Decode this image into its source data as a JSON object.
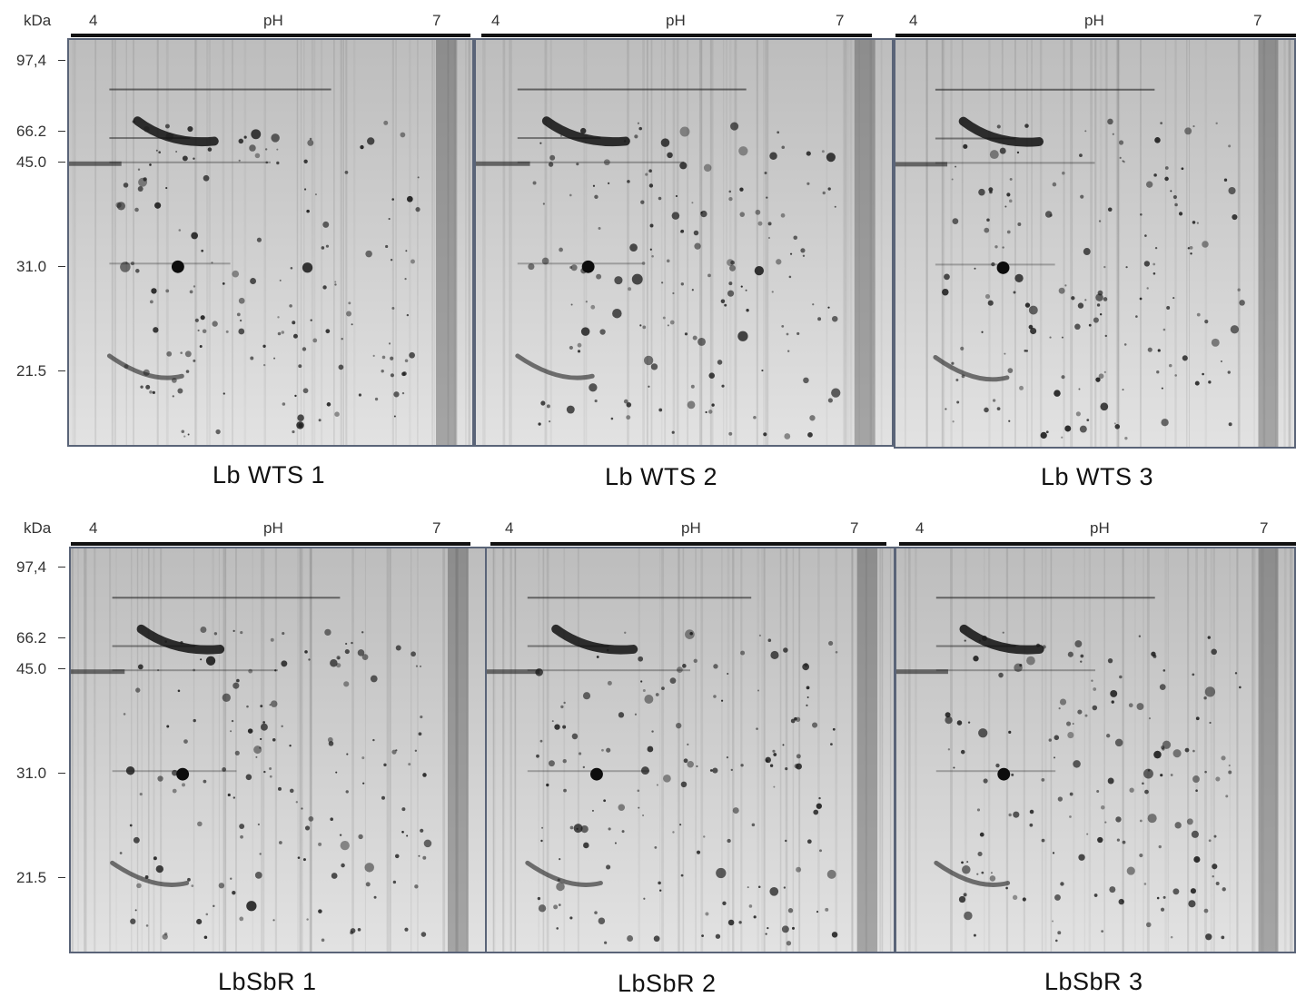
{
  "rows": [
    {
      "kda_label": "kDa",
      "mw_markers": [
        "97,4",
        "66.2",
        "45.0",
        "31.0",
        "21.5"
      ],
      "gels": [
        {
          "ph_start": "4",
          "ph_label": "pH",
          "ph_end": "7",
          "caption": "Lb WTS 1"
        },
        {
          "ph_start": "4",
          "ph_label": "pH",
          "ph_end": "7",
          "caption": "Lb WTS 2"
        },
        {
          "ph_start": "4",
          "ph_label": "pH",
          "ph_end": "7",
          "caption": "Lb WTS 3"
        }
      ]
    },
    {
      "kda_label": "kDa",
      "mw_markers": [
        "97,4",
        "66.2",
        "45.0",
        "31.0",
        "21.5"
      ],
      "gels": [
        {
          "ph_start": "4",
          "ph_label": "pH",
          "ph_end": "7",
          "caption": "LbSbR 1"
        },
        {
          "ph_start": "4",
          "ph_label": "pH",
          "ph_end": "7",
          "caption": "LbSbR 2"
        },
        {
          "ph_start": "4",
          "ph_label": "pH",
          "ph_end": "7",
          "caption": "LbSbR 3"
        }
      ]
    }
  ],
  "colors": {
    "gel_background": "#d4d4d4",
    "spot": "#1a1a1a",
    "frame": "#5a6478"
  }
}
